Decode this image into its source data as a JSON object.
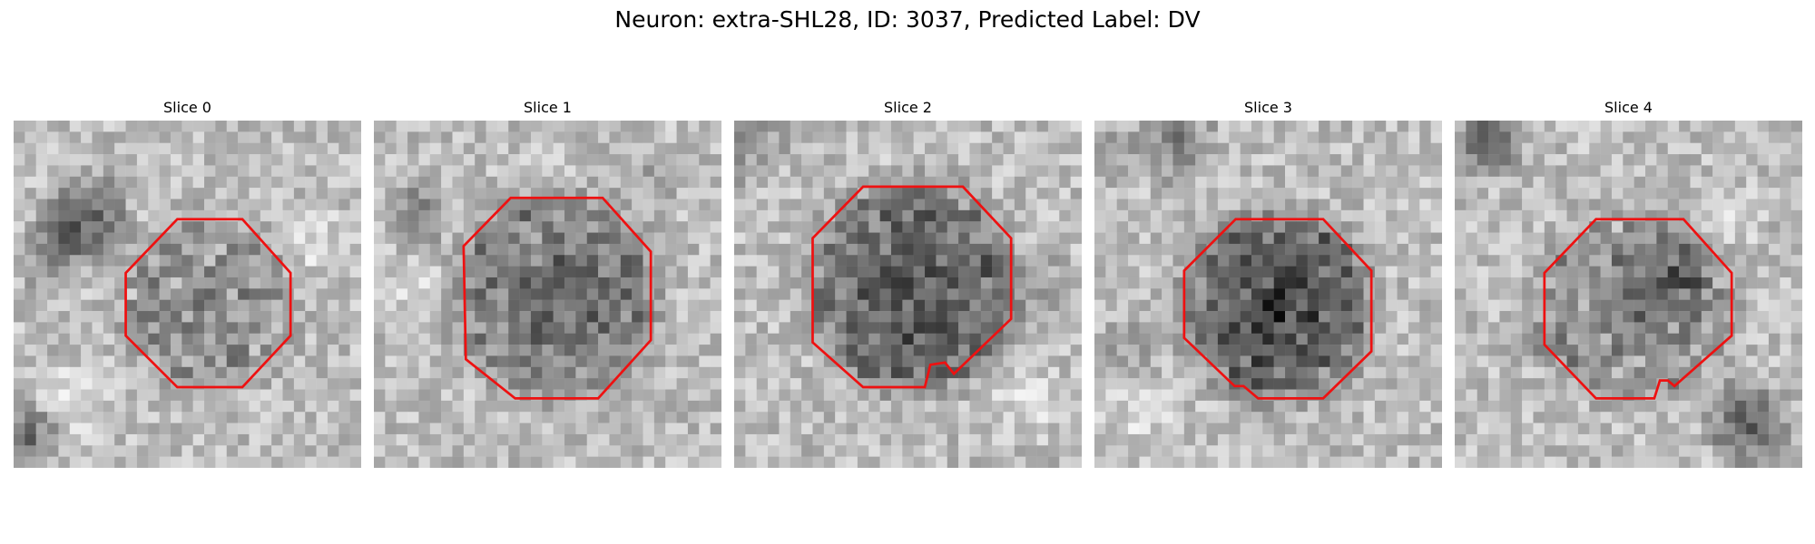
{
  "figure": {
    "title": "Neuron: extra-SHL28, ID: 3037, Predicted Label: DV"
  },
  "panels": [
    {
      "title": "Slice 0"
    },
    {
      "title": "Slice 1"
    },
    {
      "title": "Slice 2"
    },
    {
      "title": "Slice 3"
    },
    {
      "title": "Slice 4"
    }
  ],
  "colors": {
    "roi_outline": "#ee1111",
    "background": "#ffffff"
  }
}
